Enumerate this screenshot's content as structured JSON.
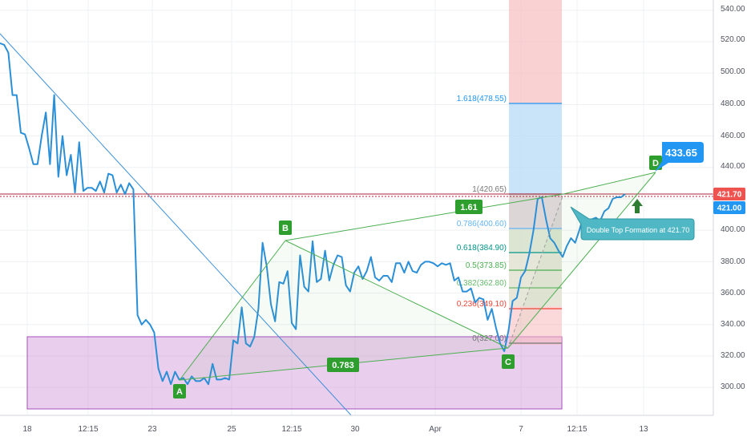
{
  "chart_data": {
    "type": "line",
    "title": "",
    "price_axis": {
      "ticks": [
        "540.00",
        "520.00",
        "500.00",
        "480.00",
        "460.00",
        "440.00",
        "400.00",
        "380.00",
        "360.00",
        "340.00",
        "320.00",
        "300.00"
      ],
      "ylim": [
        281,
        546
      ]
    },
    "time_axis": {
      "labels": [
        "18",
        "12:15",
        "23",
        "25",
        "12:15",
        "30",
        "Apr",
        "7",
        "12:15",
        "13"
      ]
    },
    "series": [
      {
        "values": [
          519,
          518,
          513,
          486,
          486,
          462,
          461,
          452,
          442,
          442,
          460,
          475,
          442,
          486,
          434,
          460,
          435,
          448,
          424,
          456,
          425,
          427,
          427,
          425,
          431,
          424,
          436,
          435,
          424,
          429,
          423,
          430,
          426,
          346,
          340,
          343,
          340,
          335,
          312,
          304,
          310,
          302,
          310,
          305,
          306,
          302,
          307,
          304,
          304,
          306,
          302,
          315,
          305,
          305,
          306,
          305,
          330,
          328,
          351,
          328,
          326,
          332,
          350,
          392,
          377,
          353,
          342,
          367,
          366,
          374,
          341,
          337,
          384,
          364,
          361,
          393,
          367,
          369,
          387,
          368,
          378,
          384,
          383,
          365,
          361,
          373,
          377,
          369,
          374,
          383,
          370,
          368,
          371,
          371,
          367,
          379,
          379,
          373,
          380,
          374,
          373,
          378,
          380,
          380,
          379,
          377,
          379,
          378,
          379,
          368,
          370,
          361,
          361,
          363,
          354,
          357,
          356,
          343,
          350,
          338,
          328,
          323,
          336,
          355,
          357,
          370,
          374,
          385,
          400,
          420,
          421,
          407,
          395,
          392,
          387,
          383,
          390,
          395,
          392,
          400,
          409,
          406,
          407,
          408,
          406,
          412,
          414,
          420,
          421,
          421,
          423
        ]
      }
    ],
    "price_labels": {
      "current": "421.70",
      "secondary": "421.00",
      "target": "433.65"
    },
    "pattern_points": {
      "A": "A",
      "B": "B",
      "C": "C",
      "D": "D"
    },
    "ratios": {
      "ab_cd": "1.61",
      "ac": "0.783"
    },
    "fib_levels": [
      {
        "label": "1.618(478.55)",
        "color": "#2196f3"
      },
      {
        "label": "1(420.65)",
        "color": "#787878"
      },
      {
        "label": "0.786(400.60)",
        "color": "#64b5f6"
      },
      {
        "label": "0.618(384.90)",
        "color": "#009688"
      },
      {
        "label": "0.5(373.85)",
        "color": "#4caf50"
      },
      {
        "label": "0.382(362.80)",
        "color": "#66bb6a"
      },
      {
        "label": "0.236(349.10)",
        "color": "#f44336"
      },
      {
        "label": "0(327.00)",
        "color": "#787878"
      }
    ],
    "annotation": "Double Top Formation at 421.70",
    "colors": {
      "price_line": "#2b8fd8",
      "pattern": "#4caf50",
      "zone": "#ce93d8",
      "label_green": "#2e9e2e",
      "current_label": "#ef5350",
      "target_label": "#2196f3",
      "secondary_label": "#2196f3"
    }
  }
}
